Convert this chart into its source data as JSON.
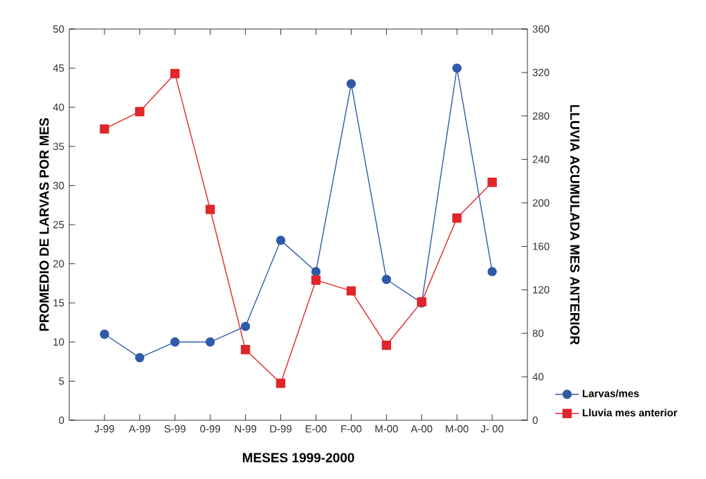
{
  "chart_data": {
    "type": "line",
    "xlabel": "MESES 1999-2000",
    "ylabel": "PROMEDIO DE LARVAS POR MES",
    "y2label": "LLUVIA ACUMULADA MES ANTERIOR",
    "categories": [
      "J-99",
      "A-99",
      "S-99",
      "0-99",
      "N-99",
      "D-99",
      "E-00",
      "F-00",
      "M-00",
      "A-00",
      "M-00",
      "J- 00"
    ],
    "series": [
      {
        "name": "Larvas/mes",
        "color": "#2f5aa8",
        "marker": "circle",
        "values": [
          11,
          8,
          10,
          10,
          12,
          23,
          19,
          43,
          18,
          15,
          45,
          19
        ]
      },
      {
        "name": "Lluvia mes anterior",
        "color": "#e0262a",
        "marker": "square",
        "axis": "y2",
        "values": [
          268,
          284,
          319,
          194,
          65,
          34,
          129,
          119,
          69,
          109,
          186,
          219
        ]
      }
    ],
    "ylim": [
      0,
      50
    ],
    "yticks": [
      0,
      5,
      10,
      15,
      20,
      25,
      30,
      35,
      40,
      45,
      50
    ],
    "y2lim": [
      0,
      360
    ],
    "y2ticks": [
      0,
      40,
      80,
      120,
      160,
      200,
      240,
      280,
      320,
      360
    ],
    "grid": false,
    "legend": "bottom right",
    "line_style": "solid"
  }
}
